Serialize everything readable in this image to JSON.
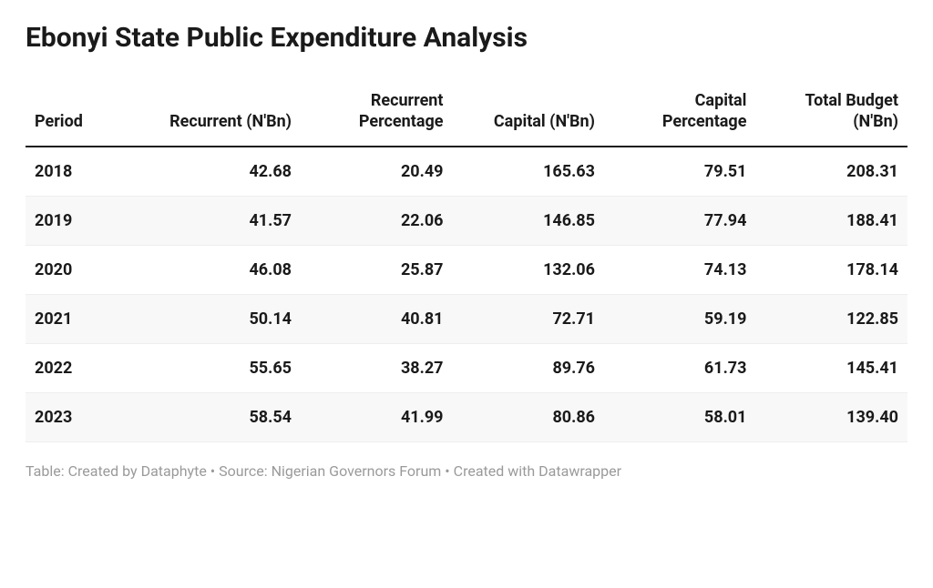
{
  "title": "Ebonyi State Public Expenditure Analysis",
  "table": {
    "type": "table",
    "columns": [
      {
        "label": "Period",
        "align": "left",
        "width": "14%"
      },
      {
        "label": "Recurrent (N'Bn)",
        "align": "right",
        "width": "17.2%"
      },
      {
        "label": "Recurrent Percentage",
        "align": "right",
        "width": "17.2%"
      },
      {
        "label": "Capital (N'Bn)",
        "align": "right",
        "width": "17.2%"
      },
      {
        "label": "Capital Percentage",
        "align": "right",
        "width": "17.2%"
      },
      {
        "label": "Total Budget (N'Bn)",
        "align": "right",
        "width": "17.2%"
      }
    ],
    "rows": [
      [
        "2018",
        "42.68",
        "20.49",
        "165.63",
        "79.51",
        "208.31"
      ],
      [
        "2019",
        "41.57",
        "22.06",
        "146.85",
        "77.94",
        "188.41"
      ],
      [
        "2020",
        "46.08",
        "25.87",
        "132.06",
        "74.13",
        "178.14"
      ],
      [
        "2021",
        "50.14",
        "40.81",
        "72.71",
        "59.19",
        "122.85"
      ],
      [
        "2022",
        "55.65",
        "38.27",
        "89.76",
        "61.73",
        "145.41"
      ],
      [
        "2023",
        "58.54",
        "41.99",
        "80.86",
        "58.01",
        "139.40"
      ]
    ],
    "header_font_size": 18,
    "header_font_weight": 700,
    "cell_font_size": 18,
    "cell_font_weight": 700,
    "header_border_color": "#1a1a1a",
    "row_border_color": "#eeeeee",
    "stripe_color": "#f8f8f8",
    "text_color": "#1a1a1a",
    "background_color": "#ffffff"
  },
  "footer": "Table: Created by Dataphyte • Source: Nigerian Governors Forum • Created with Datawrapper",
  "footer_color": "#9a9a9a",
  "footer_font_size": 16,
  "title_font_size": 30,
  "title_font_weight": 700
}
